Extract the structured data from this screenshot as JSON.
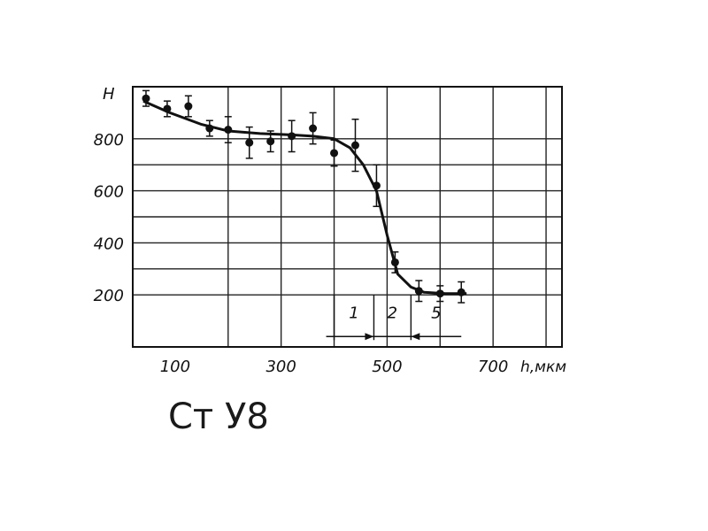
{
  "caption": "Ст У8",
  "chart_data": {
    "type": "scatter",
    "title": "",
    "xlabel": "h,мкм",
    "ylabel": "H",
    "xlim": [
      20,
      830
    ],
    "ylim": [
      0,
      1000
    ],
    "x_ticks": [
      100,
      300,
      500,
      700
    ],
    "x_tick_labels": [
      "100",
      "300",
      "500",
      "700"
    ],
    "y_ticks": [
      200,
      400,
      600,
      800
    ],
    "y_tick_labels": [
      "200",
      "400",
      "600",
      "800"
    ],
    "grid": true,
    "series": [
      {
        "x": [
          45,
          85,
          125,
          165,
          200,
          240,
          280,
          320,
          360,
          400,
          440,
          480,
          515,
          560,
          600,
          640
        ],
        "y": [
          955,
          915,
          925,
          840,
          835,
          785,
          790,
          810,
          840,
          745,
          775,
          620,
          325,
          215,
          205,
          210
        ],
        "yerr": [
          30,
          30,
          40,
          30,
          50,
          60,
          40,
          60,
          60,
          50,
          100,
          80,
          40,
          40,
          30,
          40
        ]
      }
    ],
    "trend": {
      "x": [
        40,
        90,
        150,
        200,
        260,
        320,
        360,
        400,
        430,
        455,
        480,
        500,
        520,
        545,
        570,
        610,
        650
      ],
      "y": [
        945,
        900,
        855,
        830,
        820,
        815,
        810,
        800,
        765,
        700,
        600,
        430,
        280,
        230,
        210,
        205,
        205
      ]
    },
    "zones": {
      "boundaries": [
        400,
        475,
        545,
        640
      ],
      "labels": [
        "1",
        "2",
        "5"
      ]
    }
  }
}
